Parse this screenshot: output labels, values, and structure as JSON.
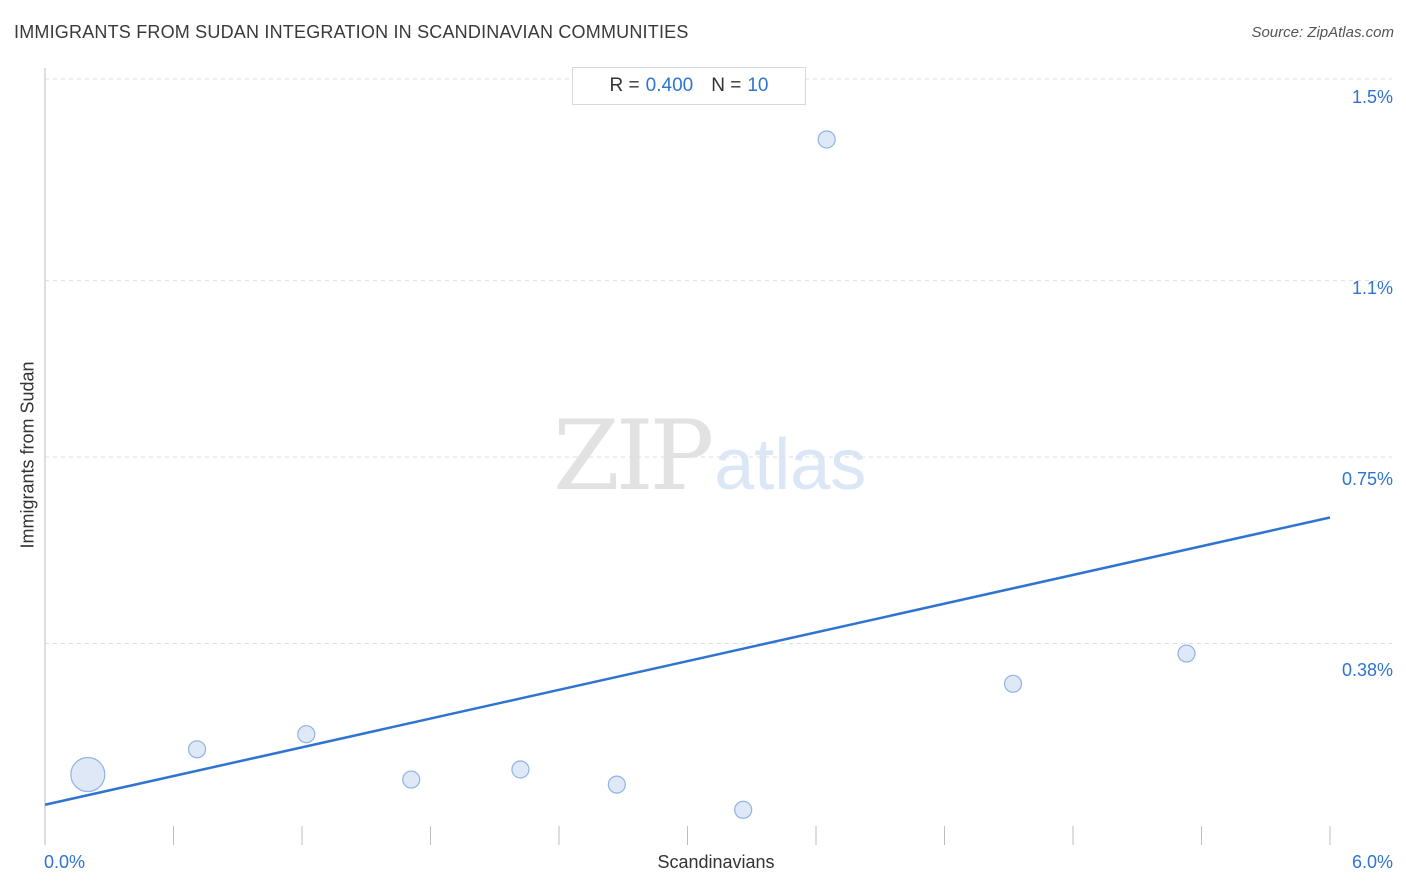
{
  "header": {
    "title": "IMMIGRANTS FROM SUDAN INTEGRATION IN SCANDINAVIAN COMMUNITIES",
    "source": "Source: ZipAtlas.com"
  },
  "stats": {
    "r_label": "R =",
    "r_value": "0.400",
    "n_label": "N =",
    "n_value": "10"
  },
  "watermark": {
    "zip": "ZIP",
    "atlas": "atlas"
  },
  "colors": {
    "accent": "#2f74d0",
    "point_fill": "#dae6f6",
    "point_stroke": "#8fb3e3",
    "grid": "#dddddd"
  },
  "chart_data": {
    "type": "scatter",
    "title": "IMMIGRANTS FROM SUDAN INTEGRATION IN SCANDINAVIAN COMMUNITIES",
    "xlabel": "Scandinavians",
    "ylabel": "Immigrants from Sudan",
    "xlim": [
      0.0,
      6.0
    ],
    "ylim": [
      0.0,
      1.58
    ],
    "x_tick_labels": [
      "0.0%",
      "6.0%"
    ],
    "y_ticks": [
      {
        "value": 0.38,
        "label": "0.38%"
      },
      {
        "value": 0.75,
        "label": "0.75%"
      },
      {
        "value": 1.1,
        "label": "1.1%"
      },
      {
        "value": 1.5,
        "label": "1.5%"
      }
    ],
    "grid": "horizontal dashed",
    "points": [
      {
        "x": 0.2,
        "y": 0.12,
        "size": "large"
      },
      {
        "x": 0.71,
        "y": 0.17,
        "size": "small"
      },
      {
        "x": 1.22,
        "y": 0.2,
        "size": "small"
      },
      {
        "x": 1.71,
        "y": 0.11,
        "size": "small"
      },
      {
        "x": 2.22,
        "y": 0.13,
        "size": "small"
      },
      {
        "x": 2.67,
        "y": 0.1,
        "size": "small"
      },
      {
        "x": 3.26,
        "y": 0.05,
        "size": "small"
      },
      {
        "x": 3.65,
        "y": 1.38,
        "size": "small"
      },
      {
        "x": 4.52,
        "y": 0.3,
        "size": "small"
      },
      {
        "x": 5.33,
        "y": 0.36,
        "size": "small"
      }
    ],
    "trendline": {
      "x": [
        0.0,
        6.0
      ],
      "y": [
        0.06,
        0.63
      ]
    }
  }
}
